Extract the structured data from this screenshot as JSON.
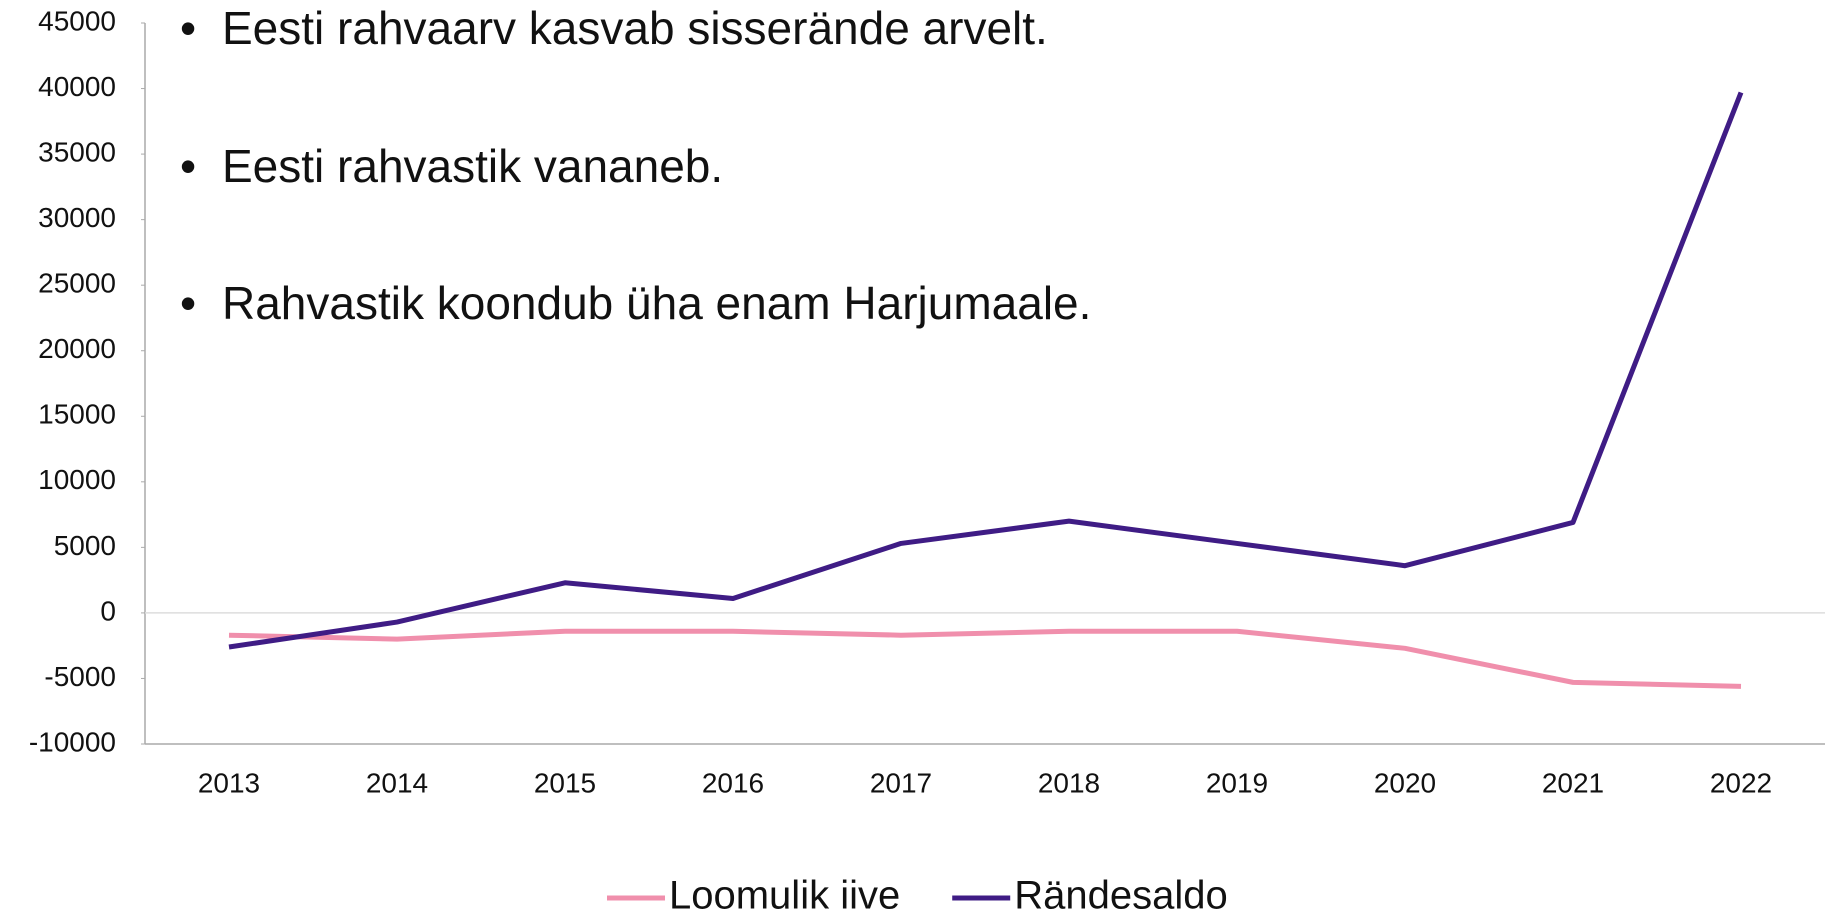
{
  "chart_data": {
    "type": "line",
    "bullets": [
      "Eesti rahvaarv kasvab sisserände arvelt.",
      "Eesti rahvastik vananeb.",
      "Rahvastik koondub üha enam Harjumaale."
    ],
    "categories": [
      "2013",
      "2014",
      "2015",
      "2016",
      "2017",
      "2018",
      "2019",
      "2020",
      "2021",
      "2022"
    ],
    "series": [
      {
        "name": "Loomulik iive",
        "color": "#f08fac",
        "values": [
          -1700,
          -2000,
          -1400,
          -1400,
          -1700,
          -1400,
          -1400,
          -2700,
          -5300,
          -5600
        ]
      },
      {
        "name": "Rändesaldo",
        "color": "#3f1c85",
        "values": [
          -2600,
          -700,
          2300,
          1100,
          5300,
          7000,
          5300,
          3600,
          6900,
          39700
        ]
      }
    ],
    "ylim": [
      -10000,
      45000
    ],
    "yticks": [
      -10000,
      -5000,
      0,
      5000,
      10000,
      15000,
      20000,
      25000,
      30000,
      35000,
      40000,
      45000
    ],
    "legend": "bottom"
  }
}
